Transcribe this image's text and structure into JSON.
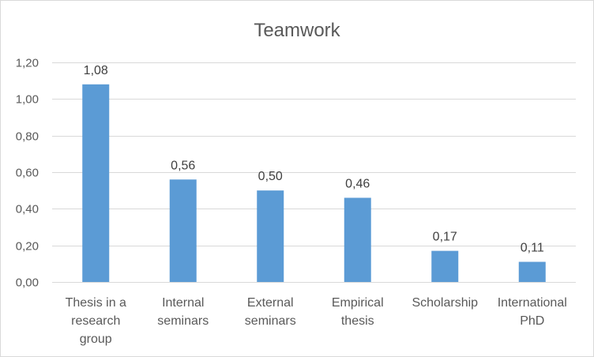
{
  "chart_data": {
    "type": "bar",
    "title": "Teamwork",
    "xlabel": "",
    "ylabel": "",
    "categories": [
      [
        "Thesis in a",
        "research",
        "group"
      ],
      [
        "Internal",
        "seminars"
      ],
      [
        "External",
        "seminars"
      ],
      [
        "Empirical",
        "thesis"
      ],
      [
        "Scholarship"
      ],
      [
        "International",
        "PhD"
      ]
    ],
    "values": [
      1.08,
      0.56,
      0.5,
      0.46,
      0.17,
      0.11
    ],
    "value_labels": [
      "1,08",
      "0,56",
      "0,50",
      "0,46",
      "0,17",
      "0,11"
    ],
    "ylim": [
      0,
      1.2
    ],
    "yticks": [
      0,
      0.2,
      0.4,
      0.6,
      0.8,
      1.0,
      1.2
    ],
    "ytick_labels": [
      "0,00",
      "0,20",
      "0,40",
      "0,60",
      "0,80",
      "1,00",
      "1,20"
    ],
    "grid": true,
    "legend": "none",
    "bar_color": "#5b9bd5"
  }
}
